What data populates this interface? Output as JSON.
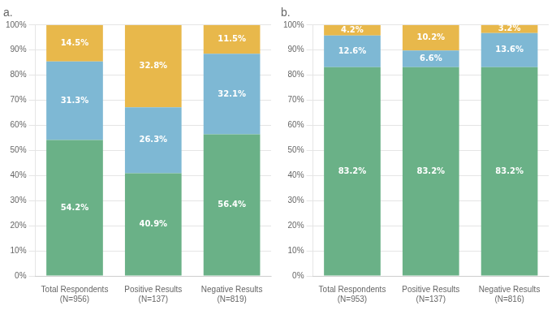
{
  "chart_data": [
    {
      "type": "bar",
      "title": "a.",
      "stacked": true,
      "grid": true,
      "data_labels": true,
      "categories": [
        "Total Respondents\n(N=956)",
        "Positive Results\n(N=137)",
        "Negative Results\n(N=819)"
      ],
      "series": [
        {
          "color": "#6ab187",
          "values": [
            54.2,
            40.9,
            56.4
          ],
          "value_labels": [
            "54.2%",
            "40.9%",
            "56.4%"
          ]
        },
        {
          "color": "#7eb8d4",
          "values": [
            31.3,
            26.3,
            32.1
          ],
          "value_labels": [
            "31.3%",
            "26.3%",
            "32.1%"
          ]
        },
        {
          "color": "#e8b84b",
          "values": [
            14.5,
            32.8,
            11.5
          ],
          "value_labels": [
            "14.5%",
            "32.8%",
            "11.5%"
          ]
        }
      ],
      "ylim": [
        0,
        100
      ],
      "yticks": [
        {
          "value": 0,
          "label": "0%"
        },
        {
          "value": 10,
          "label": "10%"
        },
        {
          "value": 20,
          "label": "20%"
        },
        {
          "value": 30,
          "label": "30%"
        },
        {
          "value": 40,
          "label": "40%"
        },
        {
          "value": 50,
          "label": "50%"
        },
        {
          "value": 60,
          "label": "60%"
        },
        {
          "value": 70,
          "label": "70%"
        },
        {
          "value": 80,
          "label": "80%"
        },
        {
          "value": 90,
          "label": "90%"
        },
        {
          "value": 100,
          "label": "100%"
        }
      ]
    },
    {
      "type": "bar",
      "title": "b.",
      "stacked": true,
      "grid": true,
      "data_labels": true,
      "categories": [
        "Total Respondents\n(N=953)",
        "Positive Results\n(N=137)",
        "Negative Results\n(N=816)"
      ],
      "series": [
        {
          "color": "#6ab187",
          "values": [
            83.2,
            83.2,
            83.2
          ],
          "value_labels": [
            "83.2%",
            "83.2%",
            "83.2%"
          ]
        },
        {
          "color": "#7eb8d4",
          "values": [
            12.6,
            6.6,
            13.6
          ],
          "value_labels": [
            "12.6%",
            "6.6%",
            "13.6%"
          ]
        },
        {
          "color": "#e8b84b",
          "values": [
            4.2,
            10.2,
            3.2
          ],
          "value_labels": [
            "4.2%",
            "10.2%",
            "3.2%"
          ]
        }
      ],
      "ylim": [
        0,
        100
      ],
      "yticks": [
        {
          "value": 0,
          "label": "0%"
        },
        {
          "value": 10,
          "label": "10%"
        },
        {
          "value": 20,
          "label": "20%"
        },
        {
          "value": 30,
          "label": "30%"
        },
        {
          "value": 40,
          "label": "40%"
        },
        {
          "value": 50,
          "label": "50%"
        },
        {
          "value": 60,
          "label": "60%"
        },
        {
          "value": 70,
          "label": "70%"
        },
        {
          "value": 80,
          "label": "80%"
        },
        {
          "value": 90,
          "label": "90%"
        },
        {
          "value": 100,
          "label": "100%"
        }
      ]
    }
  ]
}
